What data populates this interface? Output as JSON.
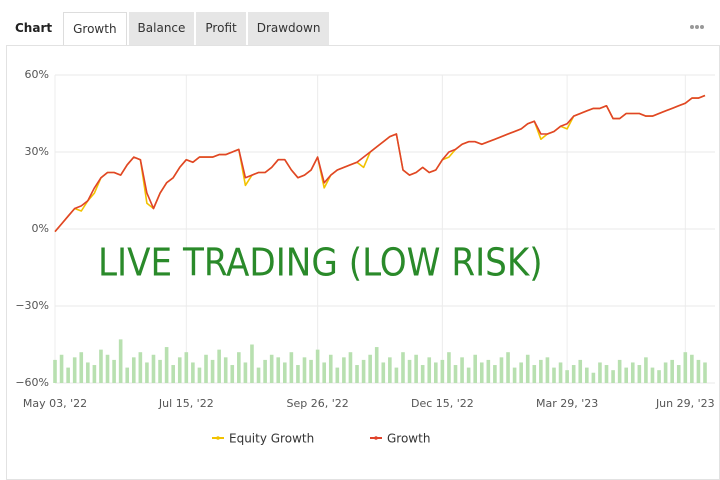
{
  "tabs": [
    "Chart",
    "Growth",
    "Balance",
    "Profit",
    "Drawdown"
  ],
  "active_tab": 1,
  "chart_data": {
    "type": "line",
    "annotation": "LIVE TRADING (LOW RISK)",
    "categories": [
      "May 03, '22",
      null,
      null,
      null,
      null,
      null,
      null,
      null,
      null,
      null,
      null,
      null,
      null,
      null,
      null,
      null,
      null,
      null,
      null,
      null,
      "Jul 15, '22",
      null,
      null,
      null,
      null,
      null,
      null,
      null,
      null,
      null,
      null,
      null,
      null,
      null,
      null,
      null,
      null,
      null,
      null,
      null,
      "Sep 26, '22",
      null,
      null,
      null,
      null,
      null,
      null,
      null,
      null,
      null,
      null,
      null,
      null,
      null,
      null,
      null,
      null,
      null,
      null,
      "Dec 15, '22",
      null,
      null,
      null,
      null,
      null,
      null,
      null,
      null,
      null,
      null,
      null,
      null,
      null,
      null,
      null,
      null,
      null,
      null,
      "Mar 29, '23",
      null,
      null,
      null,
      null,
      null,
      null,
      null,
      null,
      null,
      null,
      null,
      null,
      null,
      null,
      null,
      null,
      null,
      "Jun 29, '23",
      null,
      null,
      null
    ],
    "series": [
      {
        "name": "Equity Growth",
        "color": "#f2c200",
        "values": [
          -1,
          2,
          5,
          8,
          7,
          11,
          14,
          20,
          22,
          22,
          21,
          25,
          28,
          27,
          10,
          8,
          14,
          18,
          20,
          24,
          27,
          26,
          28,
          28,
          28,
          29,
          29,
          30,
          31,
          17,
          21,
          22,
          22,
          24,
          27,
          27,
          23,
          20,
          21,
          23,
          28,
          16,
          21,
          23,
          24,
          25,
          26,
          24,
          30,
          32,
          34,
          36,
          37,
          23,
          21,
          22,
          24,
          22,
          23,
          27,
          28,
          31,
          33,
          34,
          34,
          33,
          34,
          35,
          36,
          37,
          38,
          39,
          41,
          42,
          35,
          37,
          38,
          40,
          39,
          44,
          45,
          46,
          47,
          47,
          48,
          43,
          43,
          45,
          45,
          45,
          44,
          44,
          45,
          46,
          47,
          48,
          49,
          51,
          51,
          52
        ]
      },
      {
        "name": "Growth",
        "color": "#e0432b",
        "values": [
          -1,
          2,
          5,
          8,
          9,
          11,
          16,
          20,
          22,
          22,
          21,
          25,
          28,
          27,
          14,
          8,
          14,
          18,
          20,
          24,
          27,
          26,
          28,
          28,
          28,
          29,
          29,
          30,
          31,
          20,
          21,
          22,
          22,
          24,
          27,
          27,
          23,
          20,
          21,
          23,
          28,
          18,
          21,
          23,
          24,
          25,
          26,
          28,
          30,
          32,
          34,
          36,
          37,
          23,
          21,
          22,
          24,
          22,
          23,
          27,
          30,
          31,
          33,
          34,
          34,
          33,
          34,
          35,
          36,
          37,
          38,
          39,
          41,
          42,
          37,
          37,
          38,
          40,
          41,
          44,
          45,
          46,
          47,
          47,
          48,
          43,
          43,
          45,
          45,
          45,
          44,
          44,
          45,
          46,
          47,
          48,
          49,
          51,
          51,
          52
        ]
      }
    ],
    "bars": {
      "color": "#b8e0b0",
      "values": [
        9,
        11,
        6,
        10,
        12,
        8,
        7,
        13,
        11,
        9,
        17,
        6,
        10,
        12,
        8,
        11,
        9,
        14,
        7,
        10,
        12,
        8,
        6,
        11,
        9,
        13,
        10,
        7,
        12,
        8,
        15,
        6,
        9,
        11,
        10,
        8,
        12,
        7,
        10,
        9,
        13,
        8,
        11,
        6,
        10,
        12,
        7,
        9,
        11,
        14,
        8,
        10,
        6,
        12,
        9,
        11,
        7,
        10,
        8,
        9,
        12,
        7,
        10,
        6,
        11,
        8,
        9,
        7,
        10,
        12,
        6,
        8,
        11,
        7,
        9,
        10,
        6,
        8,
        5,
        7,
        9,
        6,
        4,
        8,
        7,
        5,
        9,
        6,
        8,
        7,
        10,
        6,
        5,
        8,
        9,
        7,
        12,
        11,
        9,
        8
      ]
    },
    "ylim": [
      -60,
      60
    ],
    "yticks": [
      {
        "value": 60,
        "label": "60%"
      },
      {
        "value": 30,
        "label": "30%"
      },
      {
        "value": 0,
        "label": "0%"
      },
      {
        "value": -30,
        "label": "−30%"
      },
      {
        "value": -60,
        "label": "−60%"
      }
    ],
    "grid": true,
    "legend": "bottom"
  }
}
